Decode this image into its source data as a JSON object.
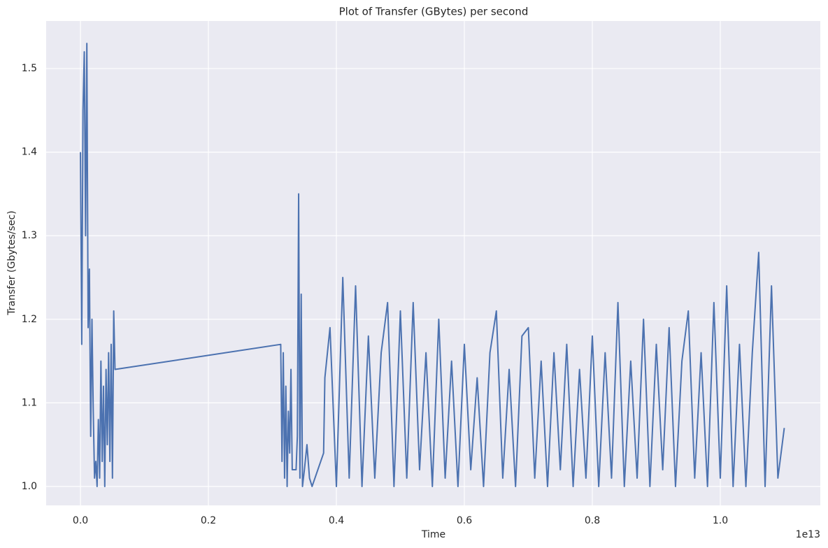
{
  "chart_data": {
    "type": "line",
    "title": "Plot of Transfer (GBytes) per second",
    "x_label": "Time",
    "y_label": "Transfer (Gbytes/sec)",
    "x_offset_label": "1e13",
    "color": "#4c72b0",
    "grid": true,
    "xlim": [
      -0.0536,
      1.1563
    ],
    "ylim": [
      0.9774,
      1.5569
    ],
    "xticks": [
      {
        "value": 0,
        "label": "0.0"
      },
      0.2,
      0.4,
      0.6,
      0.8,
      {
        "value": 1,
        "label": "1.0"
      }
    ],
    "yticks": [
      {
        "value": 1,
        "label": "1.0"
      },
      1.1,
      1.2,
      1.3,
      1.4,
      1.5
    ],
    "x": [
      0,
      0.002,
      0.004,
      0.006,
      0.008,
      0.01,
      0.012,
      0.014,
      0.016,
      0.018,
      0.02,
      0.022,
      0.024,
      0.026,
      0.028,
      0.03,
      0.032,
      0.034,
      0.036,
      0.038,
      0.04,
      0.042,
      0.044,
      0.046,
      0.048,
      0.05,
      0.052,
      0.054,
      0.313,
      0.315,
      0.317,
      0.319,
      0.321,
      0.323,
      0.325,
      0.327,
      0.329,
      0.331,
      0.334,
      0.337,
      0.339,
      0.341,
      0.343,
      0.345,
      0.347,
      0.35,
      0.354,
      0.358,
      0.362,
      0.38,
      0.382,
      0.39,
      0.4,
      0.41,
      0.42,
      0.43,
      0.44,
      0.45,
      0.46,
      0.47,
      0.48,
      0.49,
      0.5,
      0.51,
      0.52,
      0.53,
      0.54,
      0.55,
      0.56,
      0.57,
      0.58,
      0.59,
      0.6,
      0.61,
      0.62,
      0.63,
      0.64,
      0.65,
      0.66,
      0.67,
      0.68,
      0.69,
      0.7,
      0.71,
      0.72,
      0.73,
      0.74,
      0.75,
      0.76,
      0.77,
      0.78,
      0.79,
      0.8,
      0.81,
      0.82,
      0.83,
      0.84,
      0.85,
      0.86,
      0.87,
      0.88,
      0.89,
      0.9,
      0.91,
      0.92,
      0.93,
      0.94,
      0.95,
      0.96,
      0.97,
      0.98,
      0.99,
      1.0,
      1.01,
      1.02,
      1.03,
      1.04,
      1.05,
      1.06,
      1.07,
      1.08,
      1.09,
      1.1
    ],
    "values": [
      1.4,
      1.17,
      1.45,
      1.52,
      1.3,
      1.53,
      1.19,
      1.26,
      1.06,
      1.2,
      1.09,
      1.01,
      1.03,
      1.0,
      1.08,
      1.01,
      1.15,
      1.03,
      1.12,
      1.0,
      1.14,
      1.05,
      1.16,
      1.03,
      1.17,
      1.01,
      1.21,
      1.14,
      1.17,
      1.03,
      1.16,
      1.01,
      1.12,
      1.0,
      1.09,
      1.04,
      1.14,
      1.02,
      1.02,
      1.02,
      1.06,
      1.35,
      1.01,
      1.23,
      1.0,
      1.02,
      1.05,
      1.01,
      1.0,
      1.04,
      1.13,
      1.19,
      1.0,
      1.25,
      1.01,
      1.24,
      1.0,
      1.18,
      1.01,
      1.16,
      1.22,
      1.0,
      1.21,
      1.01,
      1.22,
      1.02,
      1.16,
      1.0,
      1.2,
      1.01,
      1.15,
      1.0,
      1.17,
      1.02,
      1.13,
      1.0,
      1.16,
      1.21,
      1.01,
      1.14,
      1.0,
      1.18,
      1.19,
      1.01,
      1.15,
      1.0,
      1.16,
      1.02,
      1.17,
      1.0,
      1.14,
      1.01,
      1.18,
      1.0,
      1.16,
      1.01,
      1.22,
      1.0,
      1.15,
      1.01,
      1.2,
      1.0,
      1.17,
      1.02,
      1.19,
      1.0,
      1.15,
      1.21,
      1.01,
      1.16,
      1.0,
      1.22,
      1.01,
      1.24,
      1.0,
      1.17,
      1.0,
      1.16,
      1.28,
      1.0,
      1.24,
      1.01,
      1.07
    ]
  }
}
